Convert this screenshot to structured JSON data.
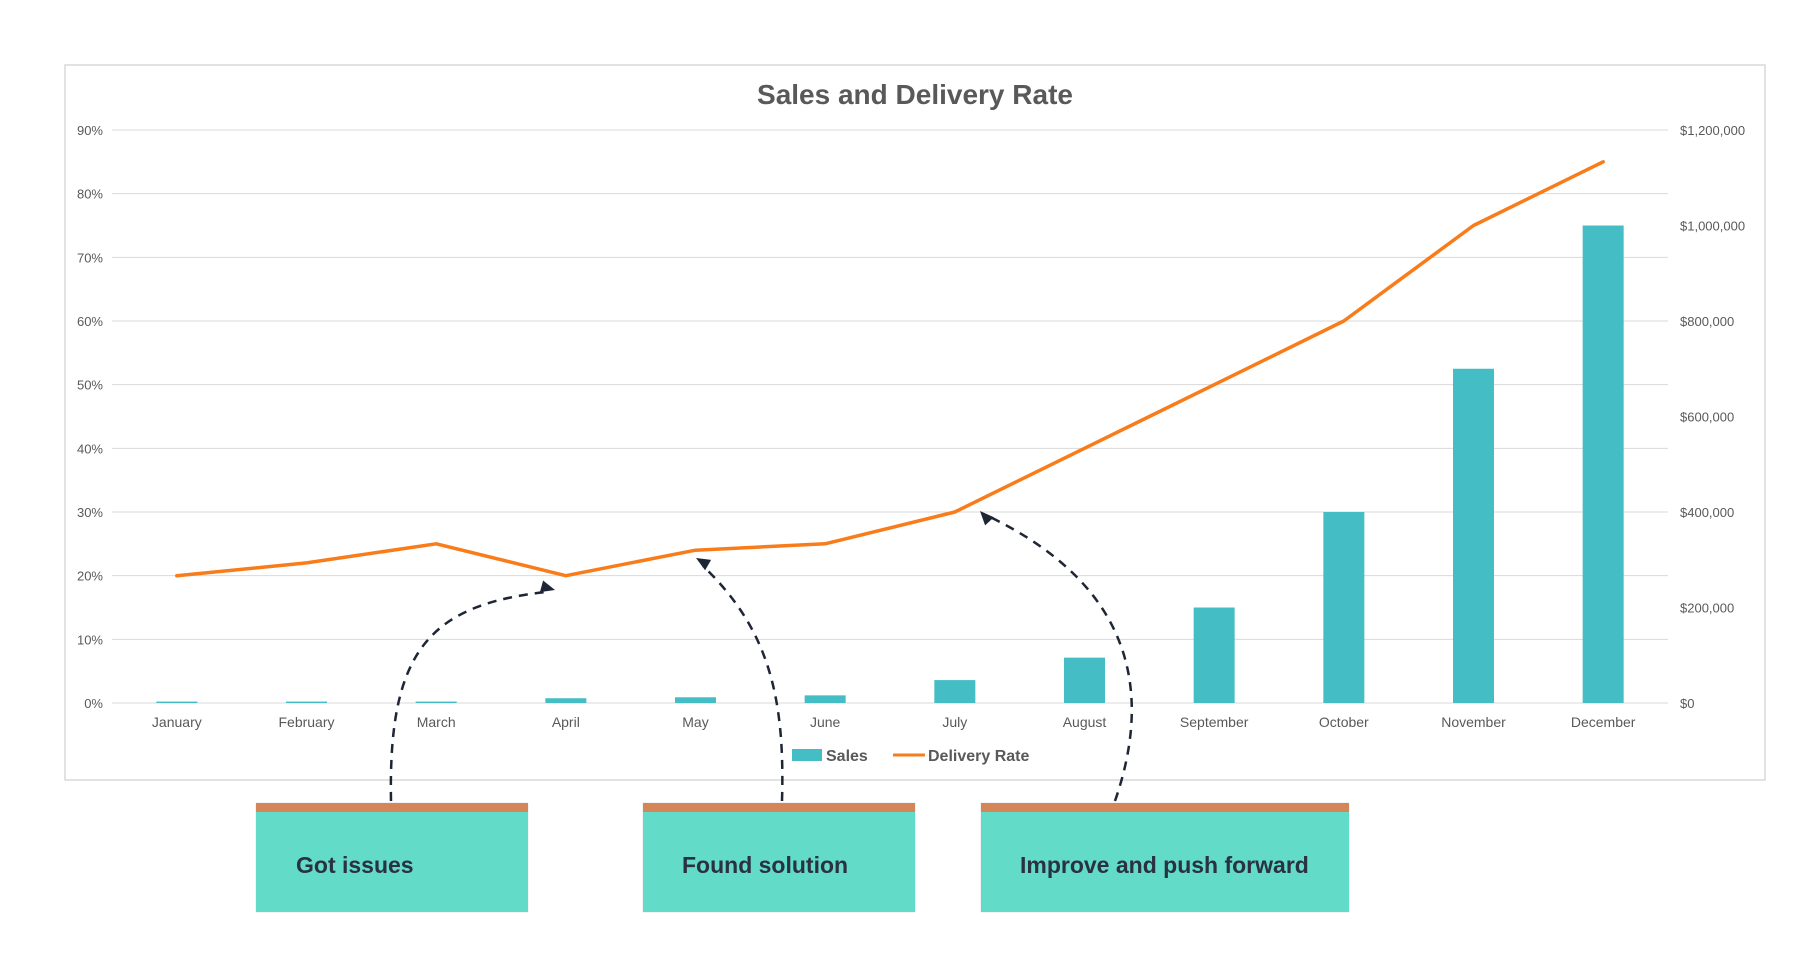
{
  "chart_data": {
    "type": "bar+line",
    "title": "Sales and Delivery Rate",
    "categories": [
      "January",
      "February",
      "March",
      "April",
      "May",
      "June",
      "July",
      "August",
      "September",
      "October",
      "November",
      "December"
    ],
    "series": [
      {
        "name": "Sales",
        "type": "bar",
        "axis": "right",
        "color": "#45bdc5",
        "values": [
          3000,
          3000,
          3000,
          10000,
          12000,
          16000,
          48000,
          95000,
          200000,
          400000,
          700000,
          1000000
        ]
      },
      {
        "name": "Delivery Rate",
        "type": "line",
        "axis": "left",
        "color": "#f97c1b",
        "values": [
          20,
          22,
          25,
          20,
          24,
          25,
          30,
          40,
          50,
          60,
          75,
          85
        ]
      }
    ],
    "y_left": {
      "ticks": [
        "0%",
        "10%",
        "20%",
        "30%",
        "40%",
        "50%",
        "60%",
        "70%",
        "80%",
        "90%"
      ],
      "min": 0,
      "max": 90
    },
    "y_right": {
      "ticks": [
        "$0",
        "$200,000",
        "$400,000",
        "$600,000",
        "$800,000",
        "$1,000,000",
        "$1,200,000"
      ],
      "min": 0,
      "max": 1200000
    },
    "legend": {
      "position": "bottom",
      "items": [
        "Sales",
        "Delivery Rate"
      ]
    },
    "grid": true
  },
  "callouts": [
    {
      "label": "Got issues",
      "target": "April"
    },
    {
      "label": "Found solution",
      "target": "May"
    },
    {
      "label": "Improve and push forward",
      "target": "July"
    }
  ]
}
